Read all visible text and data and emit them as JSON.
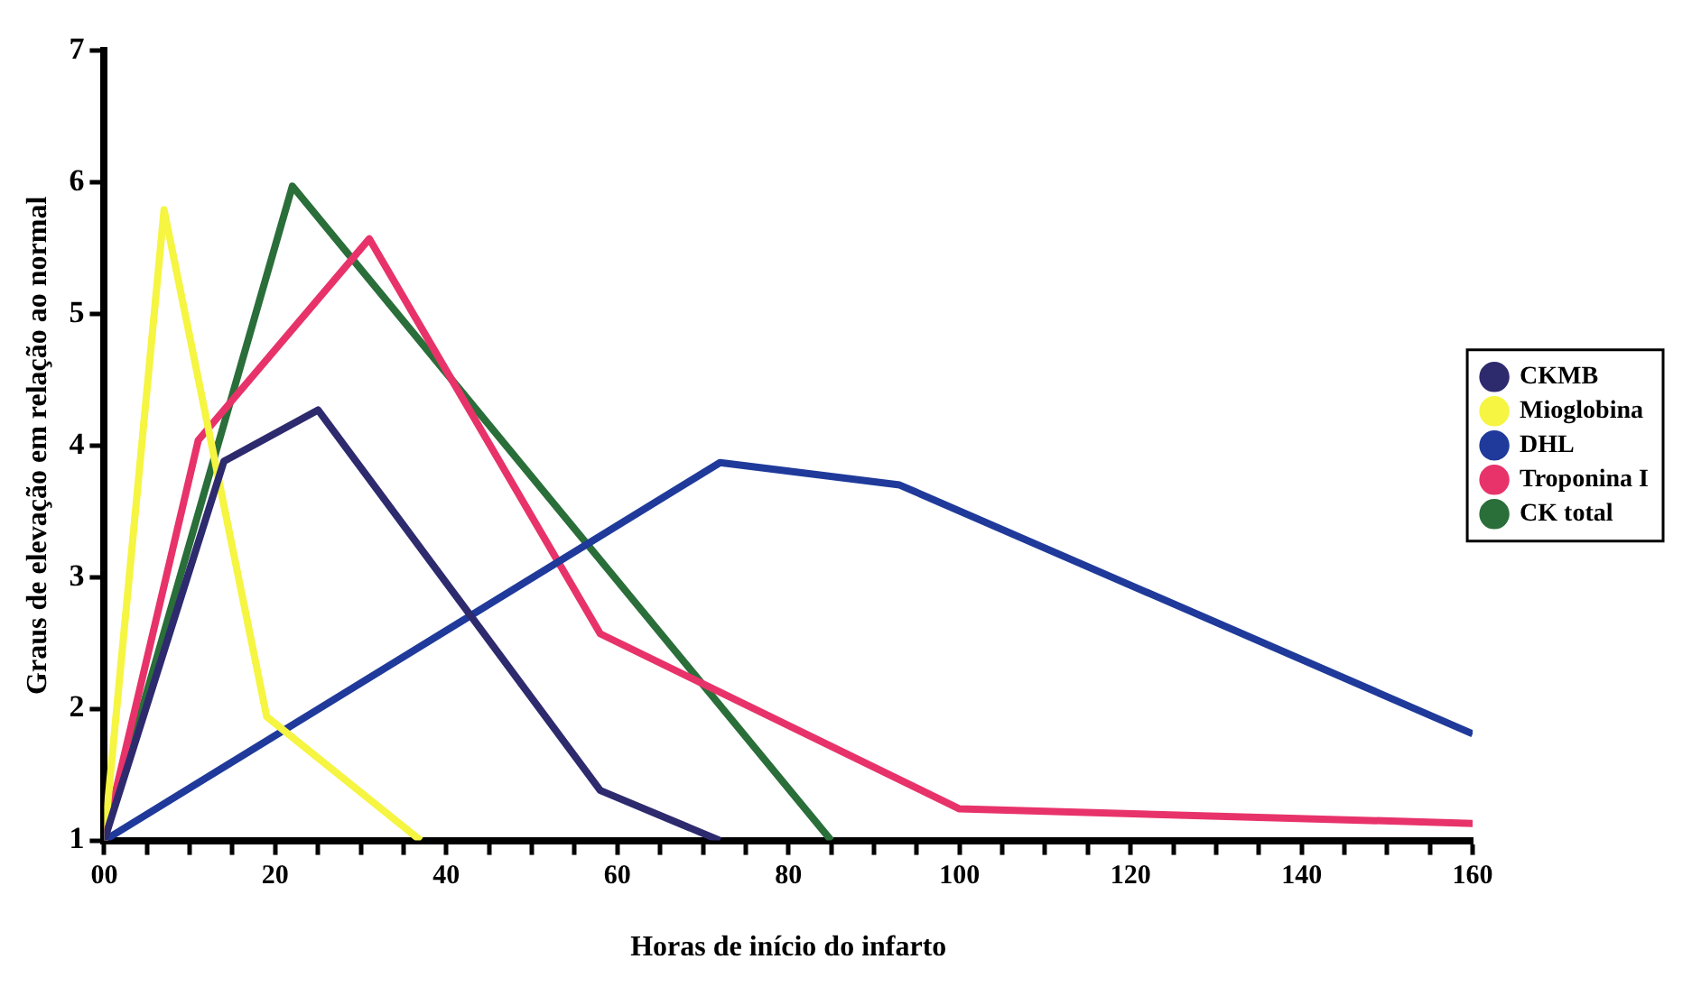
{
  "chart_data": {
    "type": "line",
    "xlabel": "Horas de início do infarto",
    "ylabel": "Graus de elevação em relação ao normal",
    "xlim": [
      0,
      160
    ],
    "ylim": [
      1,
      7
    ],
    "xticks": [
      {
        "value": 0,
        "label": "00"
      },
      {
        "value": 5,
        "label": null
      },
      {
        "value": 10,
        "label": null
      },
      {
        "value": 15,
        "label": null
      },
      20,
      {
        "value": 25,
        "label": null
      },
      {
        "value": 30,
        "label": null
      },
      {
        "value": 35,
        "label": null
      },
      40,
      {
        "value": 45,
        "label": null
      },
      {
        "value": 50,
        "label": null
      },
      {
        "value": 55,
        "label": null
      },
      60,
      {
        "value": 65,
        "label": null
      },
      {
        "value": 70,
        "label": null
      },
      {
        "value": 75,
        "label": null
      },
      80,
      {
        "value": 85,
        "label": null
      },
      {
        "value": 90,
        "label": null
      },
      {
        "value": 95,
        "label": null
      },
      100,
      {
        "value": 105,
        "label": null
      },
      {
        "value": 110,
        "label": null
      },
      {
        "value": 115,
        "label": null
      },
      120,
      {
        "value": 125,
        "label": null
      },
      {
        "value": 130,
        "label": null
      },
      {
        "value": 135,
        "label": null
      },
      140,
      {
        "value": 145,
        "label": null
      },
      {
        "value": 150,
        "label": null
      },
      {
        "value": 155,
        "label": null
      },
      160
    ],
    "yticks": [
      1,
      2,
      3,
      4,
      5,
      6,
      7
    ],
    "grid": false,
    "legend": "right",
    "marker": "none",
    "line_style": "solid",
    "series": [
      {
        "name": "CKMB",
        "color": "#2e2a6e",
        "x": [
          0,
          14,
          25,
          58,
          72
        ],
        "values": [
          1,
          3.88,
          4.27,
          1.38,
          1
        ]
      },
      {
        "name": "Mioglobina",
        "color": "#f5f542",
        "x": [
          0,
          7,
          19,
          37
        ],
        "values": [
          1,
          5.79,
          1.94,
          1
        ]
      },
      {
        "name": "DHL",
        "color": "#1f3a9a",
        "x": [
          0,
          72,
          93,
          160
        ],
        "values": [
          1,
          3.87,
          3.7,
          1.81
        ]
      },
      {
        "name": "Troponina I",
        "color": "#e8336a",
        "x": [
          0,
          11,
          31,
          58,
          100,
          160
        ],
        "values": [
          1,
          4.04,
          5.57,
          2.57,
          1.24,
          1.13
        ]
      },
      {
        "name": "CK total",
        "color": "#2a6e3a",
        "x": [
          0,
          22,
          85
        ],
        "values": [
          1,
          5.97,
          1
        ]
      }
    ]
  }
}
